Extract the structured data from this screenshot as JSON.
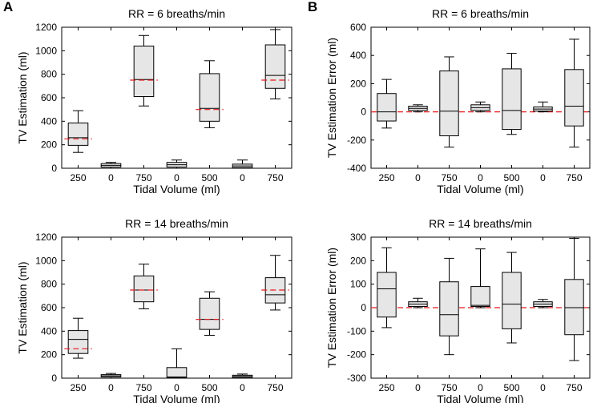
{
  "panel_labels": {
    "a": "A",
    "b": "B"
  },
  "colors": {
    "box_fill": "#e6e6e6",
    "box_edge": "#000000",
    "ref_line": "#e8191c"
  },
  "chart_data": [
    {
      "id": "A-top",
      "panel": "A",
      "type": "box",
      "title": "RR = 6 breaths/min",
      "xlabel": "Tidal Volume (ml)",
      "ylabel": "TV Estimation (ml)",
      "categories": [
        "250",
        "0",
        "750",
        "0",
        "500",
        "0",
        "750"
      ],
      "ylim": [
        0,
        1200
      ],
      "yticks": [
        0,
        200,
        400,
        600,
        800,
        1000,
        1200
      ],
      "boxes": [
        {
          "min": 135,
          "q1": 195,
          "median": 260,
          "q3": 385,
          "max": 490
        },
        {
          "min": 0,
          "q1": 10,
          "median": 25,
          "q3": 40,
          "max": 50
        },
        {
          "min": 530,
          "q1": 610,
          "median": 755,
          "q3": 1040,
          "max": 1130
        },
        {
          "min": 0,
          "q1": 10,
          "median": 30,
          "q3": 50,
          "max": 70
        },
        {
          "min": 345,
          "q1": 400,
          "median": 510,
          "q3": 805,
          "max": 915
        },
        {
          "min": 0,
          "q1": 5,
          "median": 20,
          "q3": 35,
          "max": 70
        },
        {
          "min": 590,
          "q1": 680,
          "median": 790,
          "q3": 1050,
          "max": 1180
        }
      ],
      "reference_lines": [
        {
          "category_index": 0,
          "value": 250
        },
        {
          "category_index": 2,
          "value": 750
        },
        {
          "category_index": 4,
          "value": 500
        },
        {
          "category_index": 6,
          "value": 750
        }
      ]
    },
    {
      "id": "B-top",
      "panel": "B",
      "type": "box",
      "title": "RR = 6 breaths/min",
      "xlabel": "Tidal Volume (ml)",
      "ylabel": "TV Estimation Error (ml)",
      "categories": [
        "250",
        "0",
        "750",
        "0",
        "500",
        "0",
        "750"
      ],
      "ylim": [
        -400,
        600
      ],
      "yticks": [
        -400,
        -200,
        0,
        200,
        400,
        600
      ],
      "boxes": [
        {
          "min": -115,
          "q1": -65,
          "median": 0,
          "q3": 130,
          "max": 230
        },
        {
          "min": 0,
          "q1": 10,
          "median": 25,
          "q3": 40,
          "max": 50
        },
        {
          "min": -250,
          "q1": -170,
          "median": 5,
          "q3": 290,
          "max": 390
        },
        {
          "min": 0,
          "q1": 10,
          "median": 30,
          "q3": 50,
          "max": 70
        },
        {
          "min": -160,
          "q1": -125,
          "median": 10,
          "q3": 305,
          "max": 415
        },
        {
          "min": 0,
          "q1": 5,
          "median": 20,
          "q3": 35,
          "max": 70
        },
        {
          "min": -250,
          "q1": -100,
          "median": 40,
          "q3": 300,
          "max": 515
        }
      ],
      "reference_lines": [
        {
          "value": 0,
          "span": "full"
        }
      ]
    },
    {
      "id": "A-bottom",
      "panel": "A",
      "type": "box",
      "title": "RR = 14 breaths/min",
      "xlabel": "Tidal Volume (ml)",
      "ylabel": "TV Estimation (ml)",
      "categories": [
        "250",
        "0",
        "750",
        "0",
        "500",
        "0",
        "750"
      ],
      "ylim": [
        0,
        1200
      ],
      "yticks": [
        0,
        200,
        400,
        600,
        800,
        1000,
        1200
      ],
      "boxes": [
        {
          "min": 170,
          "q1": 210,
          "median": 330,
          "q3": 405,
          "max": 510
        },
        {
          "min": 0,
          "q1": 10,
          "median": 20,
          "q3": 30,
          "max": 40
        },
        {
          "min": 590,
          "q1": 650,
          "median": 750,
          "q3": 870,
          "max": 970
        },
        {
          "min": 0,
          "q1": 5,
          "median": 10,
          "q3": 90,
          "max": 250
        },
        {
          "min": 365,
          "q1": 415,
          "median": 500,
          "q3": 680,
          "max": 735
        },
        {
          "min": 0,
          "q1": 5,
          "median": 15,
          "q3": 25,
          "max": 35
        },
        {
          "min": 580,
          "q1": 640,
          "median": 710,
          "q3": 855,
          "max": 1045
        }
      ],
      "reference_lines": [
        {
          "category_index": 0,
          "value": 250
        },
        {
          "category_index": 2,
          "value": 750
        },
        {
          "category_index": 4,
          "value": 500
        },
        {
          "category_index": 6,
          "value": 750
        }
      ]
    },
    {
      "id": "B-bottom",
      "panel": "B",
      "type": "box",
      "title": "RR = 14 breaths/min",
      "xlabel": "Tidal Volume (ml)",
      "ylabel": "TV Estimation Error (ml)",
      "categories": [
        "250",
        "0",
        "750",
        "0",
        "500",
        "0",
        "750"
      ],
      "ylim": [
        -300,
        300
      ],
      "yticks": [
        -300,
        -200,
        -100,
        0,
        100,
        200,
        300
      ],
      "boxes": [
        {
          "min": -85,
          "q1": -40,
          "median": 80,
          "q3": 150,
          "max": 255
        },
        {
          "min": 0,
          "q1": 5,
          "median": 15,
          "q3": 25,
          "max": 40
        },
        {
          "min": -200,
          "q1": -120,
          "median": -30,
          "q3": 110,
          "max": 210
        },
        {
          "min": 0,
          "q1": 5,
          "median": 10,
          "q3": 90,
          "max": 250
        },
        {
          "min": -150,
          "q1": -90,
          "median": 15,
          "q3": 150,
          "max": 235
        },
        {
          "min": 0,
          "q1": 5,
          "median": 15,
          "q3": 25,
          "max": 35
        },
        {
          "min": -225,
          "q1": -115,
          "median": 0,
          "q3": 120,
          "max": 295
        }
      ],
      "reference_lines": [
        {
          "value": 0,
          "span": "full"
        }
      ]
    }
  ]
}
